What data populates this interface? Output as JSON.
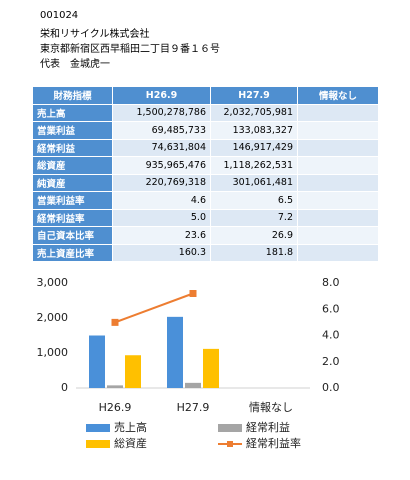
{
  "header": {
    "code": "001024",
    "company": "栄和リサイクル株式会社",
    "address": "東京都新宿区西早稲田二丁目９番１６号",
    "representative": "代表　金城虎一"
  },
  "table": {
    "columns": [
      "財務指標",
      "H26.9",
      "H27.9",
      "情報なし"
    ],
    "rows": [
      [
        "売上高",
        "1,500,278,786",
        "2,032,705,981"
      ],
      [
        "営業利益",
        "69,485,733",
        "133,083,327"
      ],
      [
        "経常利益",
        "74,631,804",
        "146,917,429"
      ],
      [
        "総資産",
        "935,965,476",
        "1,118,262,531"
      ],
      [
        "純資産",
        "220,769,318",
        "301,061,481"
      ],
      [
        "営業利益率",
        "4.6",
        "6.5"
      ],
      [
        "経常利益率",
        "5.0",
        "7.2"
      ],
      [
        "自己資本比率",
        "23.6",
        "26.9"
      ],
      [
        "売上資産比率",
        "160.3",
        "181.8"
      ]
    ]
  },
  "chart_data": {
    "type": "bar",
    "categories": [
      "H26.9",
      "H27.9",
      "情報なし"
    ],
    "series": [
      {
        "name": "売上高",
        "color": "#4a90d9",
        "values": [
          1500,
          2033,
          null
        ]
      },
      {
        "name": "経常利益",
        "color": "#a5a5a5",
        "values": [
          75,
          147,
          null
        ]
      },
      {
        "name": "総資産",
        "color": "#ffc000",
        "values": [
          936,
          1118,
          null
        ]
      },
      {
        "name": "経常利益率",
        "color": "#ed7d31",
        "type": "line",
        "axis": "y2",
        "values": [
          5.0,
          7.2,
          null
        ]
      }
    ],
    "ylim": [
      0,
      3000
    ],
    "yticks": [
      0,
      {
        "value": 1000,
        "label": "1,000"
      },
      {
        "value": 2000,
        "label": "2,000"
      },
      {
        "value": 3000,
        "label": "3,000"
      }
    ],
    "y2lim": [
      0,
      8
    ],
    "y2ticks": [
      {
        "value": 0,
        "label": "0.0"
      },
      {
        "value": 2,
        "label": "2.0"
      },
      {
        "value": 4,
        "label": "4.0"
      },
      {
        "value": 6,
        "label": "6.0"
      },
      {
        "value": 8,
        "label": "8.0"
      }
    ]
  }
}
